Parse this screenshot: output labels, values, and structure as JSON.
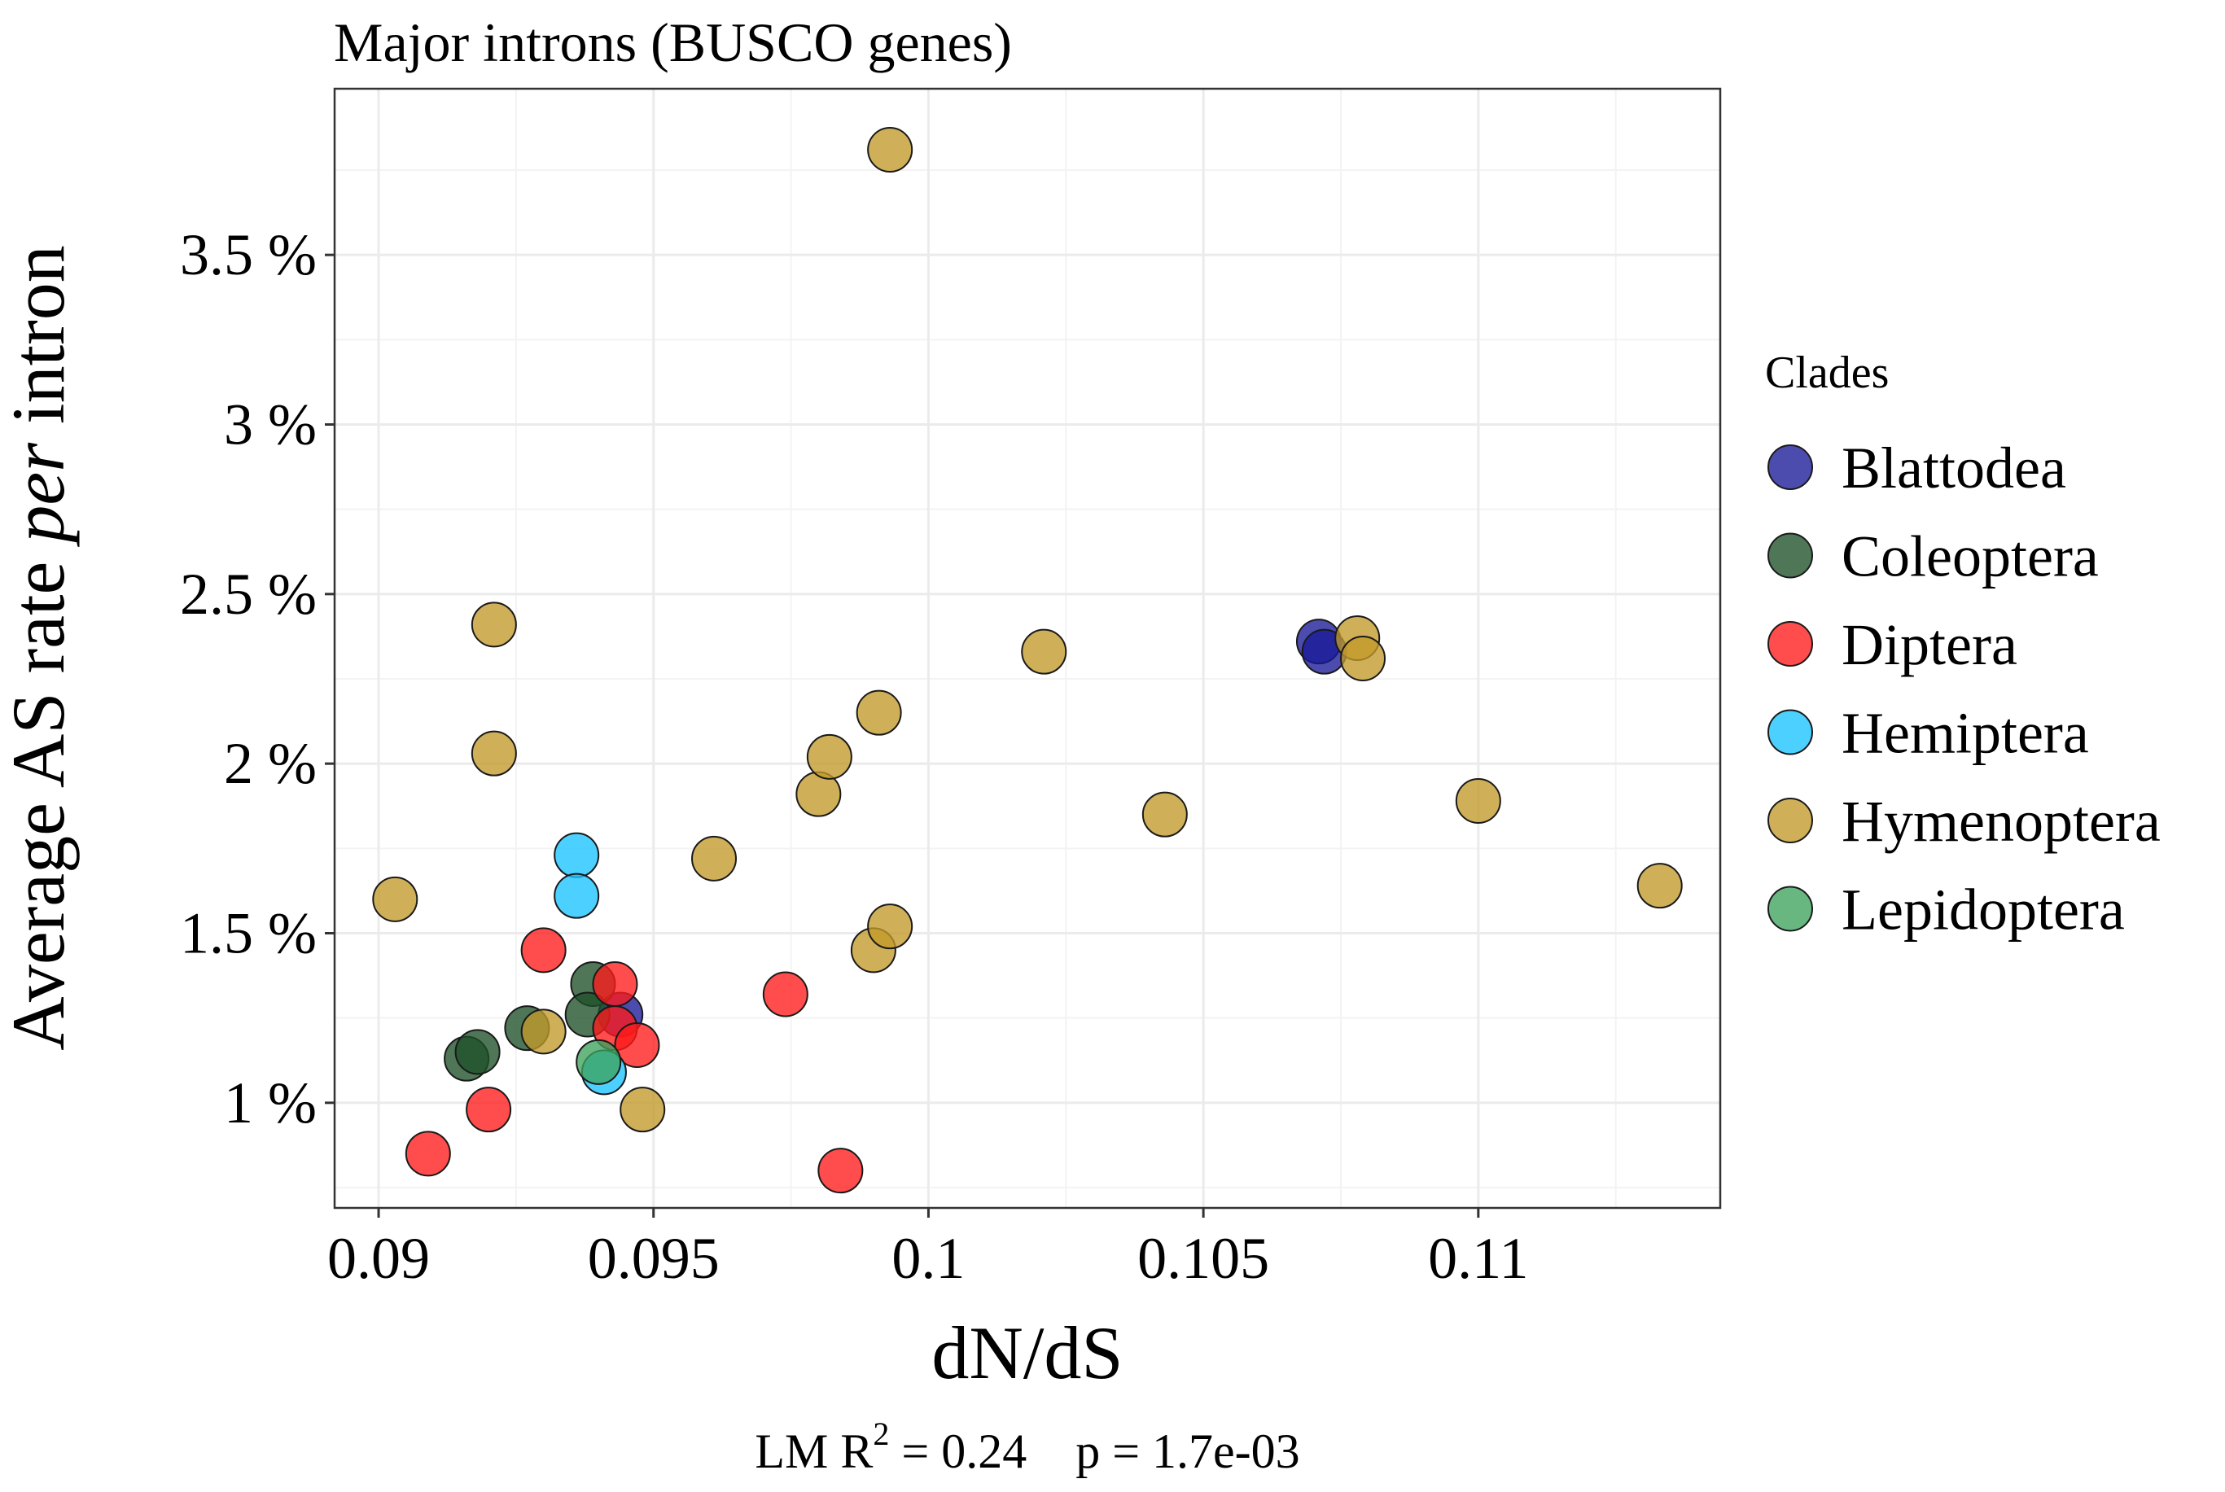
{
  "chart_data": {
    "type": "scatter",
    "title": "Major introns (BUSCO genes)",
    "xlabel": "dN/dS",
    "ylabel_parts": [
      "Average AS rate ",
      "per",
      " intron"
    ],
    "xlim": [
      0.0892,
      0.1144
    ],
    "ylim": [
      0.69,
      3.99
    ],
    "x_ticks": [
      0.09,
      0.095,
      0.1,
      0.105,
      0.11
    ],
    "x_tick_labels": [
      "0.09",
      "0.095",
      "0.1",
      "0.105",
      "0.11"
    ],
    "y_ticks": [
      1,
      1.5,
      2,
      2.5,
      3,
      3.5
    ],
    "y_tick_labels": [
      "1 %",
      "1.5 %",
      "2 %",
      "2.5 %",
      "3 %",
      "3.5 %"
    ],
    "grid": true,
    "legend": {
      "title": "Clades",
      "placement": "right"
    },
    "annotation": {
      "prefix": "LM R",
      "superscript": "2",
      "suffix": " = 0.24    p = 1.7e-03"
    },
    "series": [
      {
        "name": "Blattodea",
        "color": "#1a1a99",
        "points": [
          [
            0.1071,
            2.36
          ],
          [
            0.1072,
            2.33
          ],
          [
            0.0944,
            1.26
          ]
        ]
      },
      {
        "name": "Coleoptera",
        "color": "#1e5128",
        "points": [
          [
            0.0916,
            1.13
          ],
          [
            0.0918,
            1.15
          ],
          [
            0.0927,
            1.22
          ],
          [
            0.0939,
            1.35
          ],
          [
            0.0938,
            1.26
          ]
        ]
      },
      {
        "name": "Diptera",
        "color": "#ff1a1a",
        "points": [
          [
            0.0909,
            0.85
          ],
          [
            0.092,
            0.98
          ],
          [
            0.093,
            1.45
          ],
          [
            0.0943,
            1.35
          ],
          [
            0.0943,
            1.22
          ],
          [
            0.0947,
            1.17
          ],
          [
            0.0974,
            1.32
          ],
          [
            0.0984,
            0.8
          ]
        ]
      },
      {
        "name": "Hemiptera",
        "color": "#19c3ff",
        "points": [
          [
            0.0936,
            1.73
          ],
          [
            0.0936,
            1.61
          ],
          [
            0.0941,
            1.09
          ]
        ]
      },
      {
        "name": "Hymenoptera",
        "color": "#c29a2a",
        "points": [
          [
            0.0993,
            3.81
          ],
          [
            0.0921,
            2.41
          ],
          [
            0.0921,
            2.03
          ],
          [
            0.0903,
            1.6
          ],
          [
            0.093,
            1.21
          ],
          [
            0.0948,
            0.98
          ],
          [
            0.0961,
            1.72
          ],
          [
            0.098,
            1.91
          ],
          [
            0.0982,
            2.02
          ],
          [
            0.0991,
            2.15
          ],
          [
            0.099,
            1.45
          ],
          [
            0.0993,
            1.52
          ],
          [
            0.1021,
            2.33
          ],
          [
            0.1043,
            1.85
          ],
          [
            0.1078,
            2.37
          ],
          [
            0.1079,
            2.31
          ],
          [
            0.11,
            1.89
          ],
          [
            0.1133,
            1.64
          ]
        ]
      },
      {
        "name": "Lepidoptera",
        "color": "#3da35d",
        "points": [
          [
            0.094,
            1.12
          ]
        ]
      }
    ]
  }
}
